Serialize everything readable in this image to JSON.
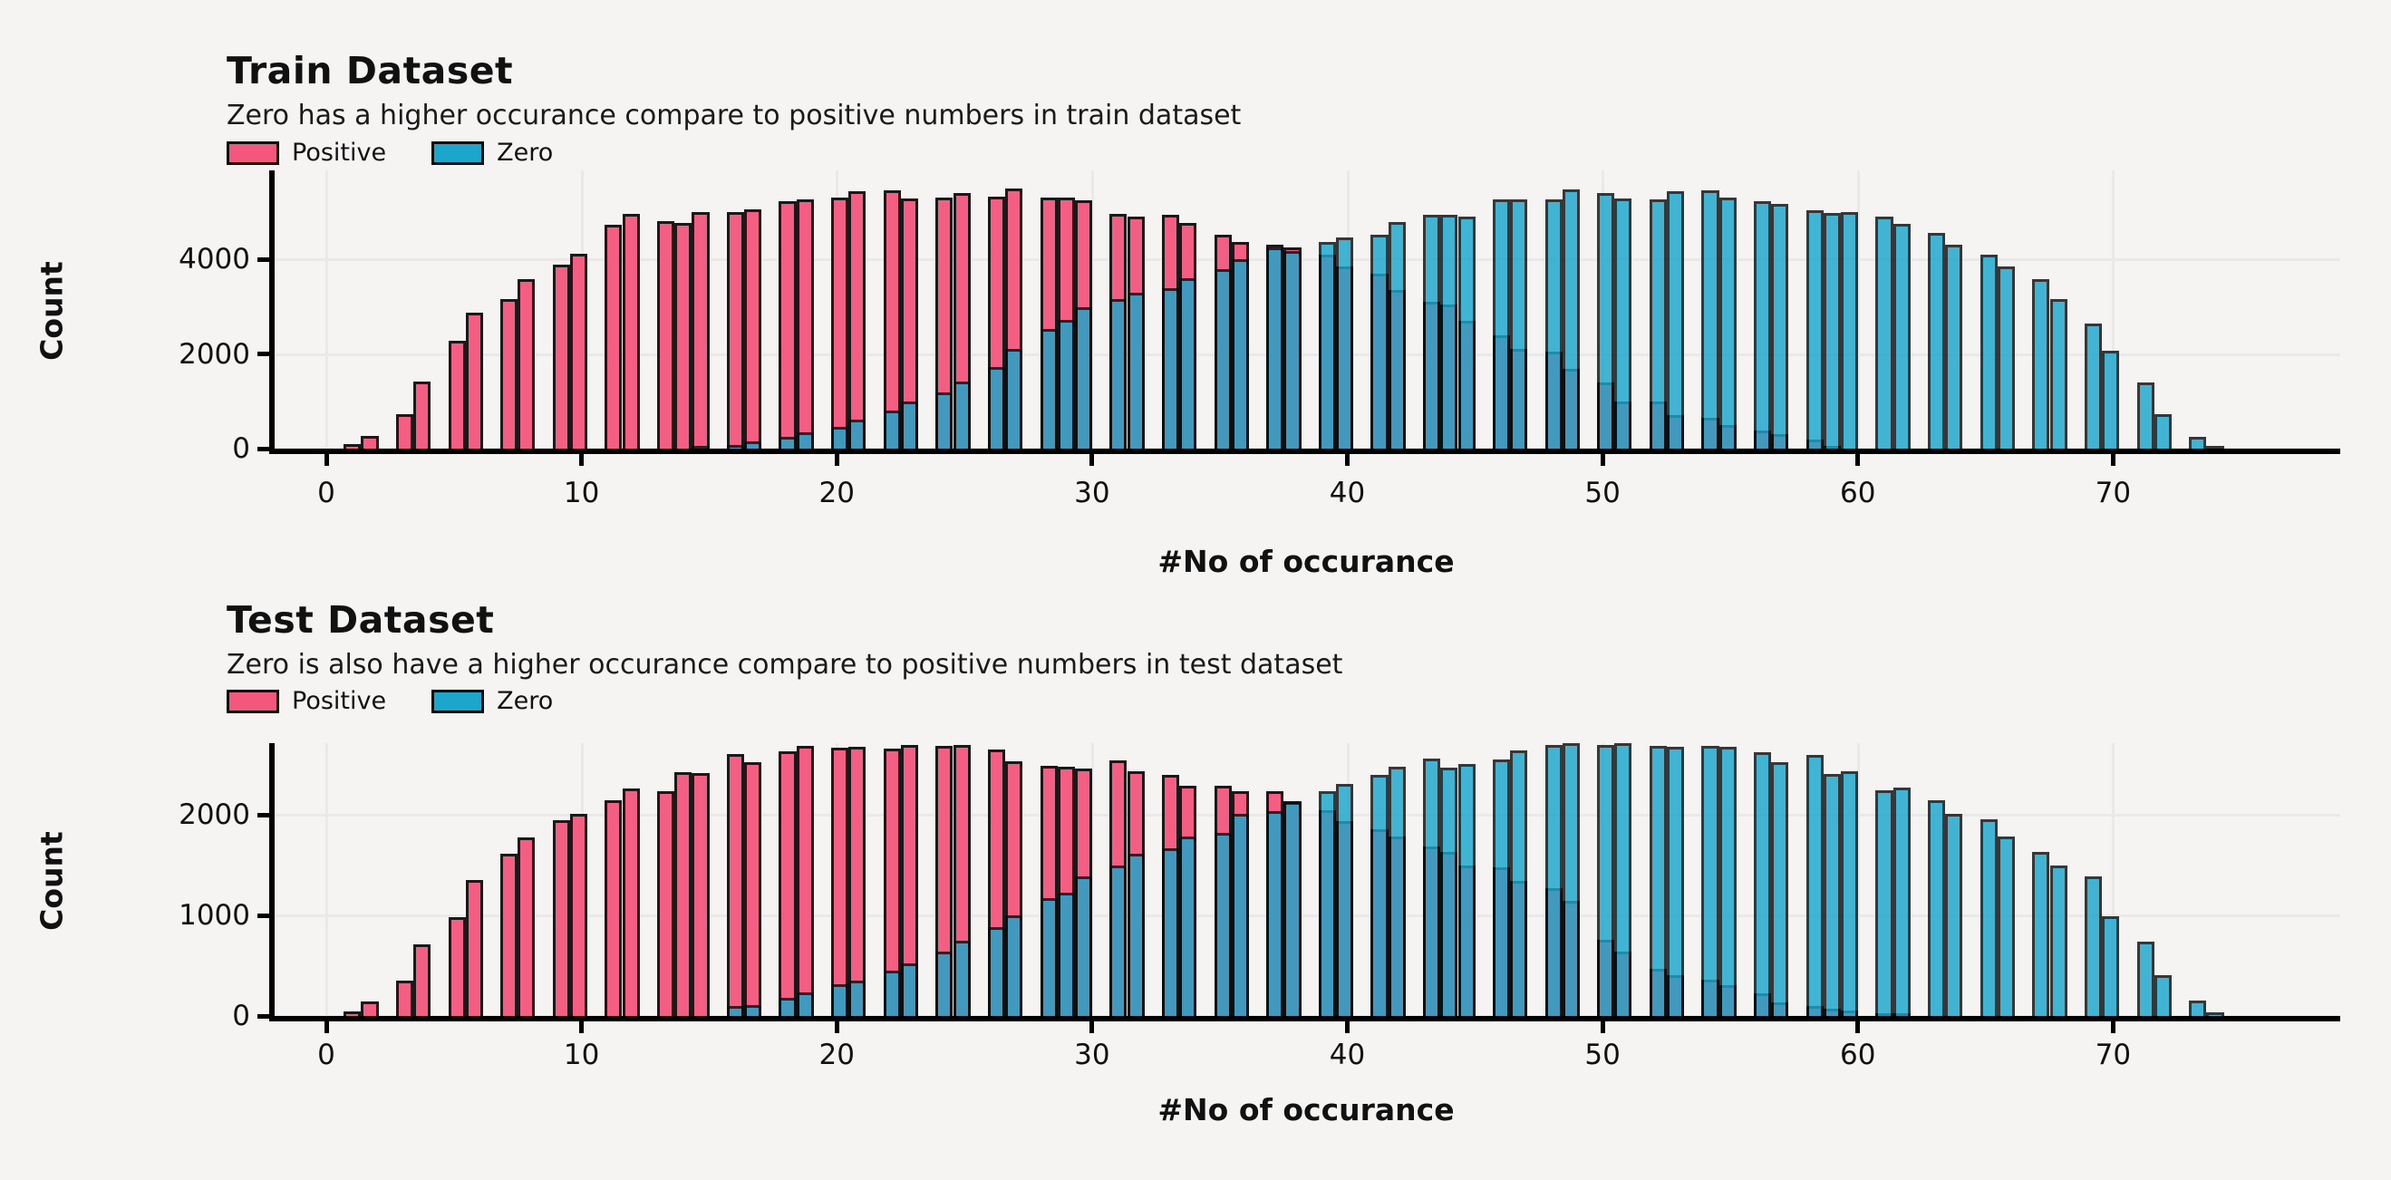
{
  "figure": {
    "background_color": "#f5f4f3",
    "gridline_color": "#e9e9e9",
    "text_color": "#111111",
    "bar_edge_color": "#0e0e0e",
    "positive_color": "#f4577d",
    "zero_color": "#1ca6cc"
  },
  "chart_data": [
    {
      "type": "bar",
      "subtype": "overlaid-histogram",
      "title": "Train Dataset",
      "subtitle": "Zero has a higher occurance compare to positive numbers in train dataset",
      "xlabel": "#No of occurance",
      "ylabel": "Count",
      "legend_position": "upper-left",
      "grid": true,
      "x_ticks": [
        0,
        10,
        20,
        30,
        40,
        50,
        60,
        70
      ],
      "y_ticks": [
        0,
        2000,
        4000
      ],
      "xlim": [
        -2.1,
        78.9
      ],
      "ylim": [
        0,
        5870
      ],
      "bin_width": 0.682,
      "series": [
        {
          "name": "Positive",
          "color": "#f4577d",
          "first_x": 1,
          "counts": [
            90,
            270,
            730,
            1420,
            2280,
            2870,
            3160,
            3570,
            3880,
            4110,
            4730,
            4960,
            4800,
            4770,
            4990,
            4990,
            5050,
            5230,
            5260,
            5310,
            5430,
            5450,
            5280,
            5310,
            5400,
            5320,
            5490,
            5310,
            5310,
            5250,
            4950,
            4900,
            4940,
            4760,
            4510,
            4370,
            4300,
            4240,
            4100,
            3850,
            3700,
            3350,
            3100,
            3050,
            2700,
            2400,
            2100,
            2050,
            1690,
            1400,
            1000,
            1000,
            700,
            660,
            500,
            380,
            300,
            190,
            60
          ]
        },
        {
          "name": "Zero",
          "color": "#1ca6cc",
          "first_x": 15,
          "counts": [
            40,
            80,
            160,
            250,
            350,
            450,
            620,
            800,
            1000,
            1180,
            1420,
            1720,
            2100,
            2530,
            2720,
            2980,
            3160,
            3300,
            3390,
            3600,
            3790,
            4000,
            4240,
            4180,
            4370,
            4450,
            4510,
            4780,
            4940,
            4940,
            4900,
            5260,
            5270,
            5270,
            5470,
            5390,
            5280,
            5270,
            5430,
            5460,
            5300,
            5220,
            5160,
            5040,
            4970,
            4990,
            4900,
            4750,
            4550,
            4300,
            4100,
            3850,
            3570,
            3150,
            2640,
            2070,
            1400,
            730,
            250,
            40
          ]
        }
      ]
    },
    {
      "type": "bar",
      "subtype": "overlaid-histogram",
      "title": "Test Dataset",
      "subtitle": "Zero is also have a higher occurance compare to positive numbers in test dataset",
      "xlabel": "#No of occurance",
      "ylabel": "Count",
      "legend_position": "upper-left",
      "grid": true,
      "x_ticks": [
        0,
        10,
        20,
        30,
        40,
        50,
        60,
        70
      ],
      "y_ticks": [
        0,
        1000,
        2000
      ],
      "xlim": [
        -2.1,
        78.9
      ],
      "ylim": [
        0,
        2718
      ],
      "bin_width": 0.682,
      "series": [
        {
          "name": "Positive",
          "color": "#f4577d",
          "first_x": 1,
          "counts": [
            48,
            148,
            354,
            713,
            984,
            1358,
            1616,
            1774,
            1945,
            2015,
            2144,
            2267,
            2240,
            2424,
            2420,
            2605,
            2528,
            2633,
            2687,
            2670,
            2681,
            2660,
            2695,
            2687,
            2700,
            2655,
            2537,
            2490,
            2480,
            2461,
            2546,
            2434,
            2400,
            2290,
            2290,
            2237,
            2237,
            2140,
            2046,
            1940,
            1860,
            1790,
            1690,
            1630,
            1500,
            1480,
            1345,
            1270,
            1150,
            755,
            645,
            465,
            410,
            360,
            305,
            222,
            136,
            100,
            75,
            50,
            25,
            10
          ]
        },
        {
          "name": "Zero",
          "color": "#1ca6cc",
          "first_x": 16,
          "counts": [
            96,
            105,
            180,
            232,
            317,
            349,
            453,
            526,
            643,
            748,
            888,
            1000,
            1176,
            1230,
            1388,
            1499,
            1616,
            1673,
            1783,
            1825,
            2015,
            2037,
            2132,
            2240,
            2306,
            2400,
            2480,
            2560,
            2472,
            2508,
            2554,
            2640,
            2700,
            2720,
            2700,
            2715,
            2690,
            2680,
            2690,
            2680,
            2630,
            2525,
            2597,
            2412,
            2435,
            2250,
            2270,
            2148,
            2015,
            1960,
            1783,
            1632,
            1500,
            1388,
            992,
            738,
            406,
            150,
            40
          ]
        }
      ]
    }
  ]
}
